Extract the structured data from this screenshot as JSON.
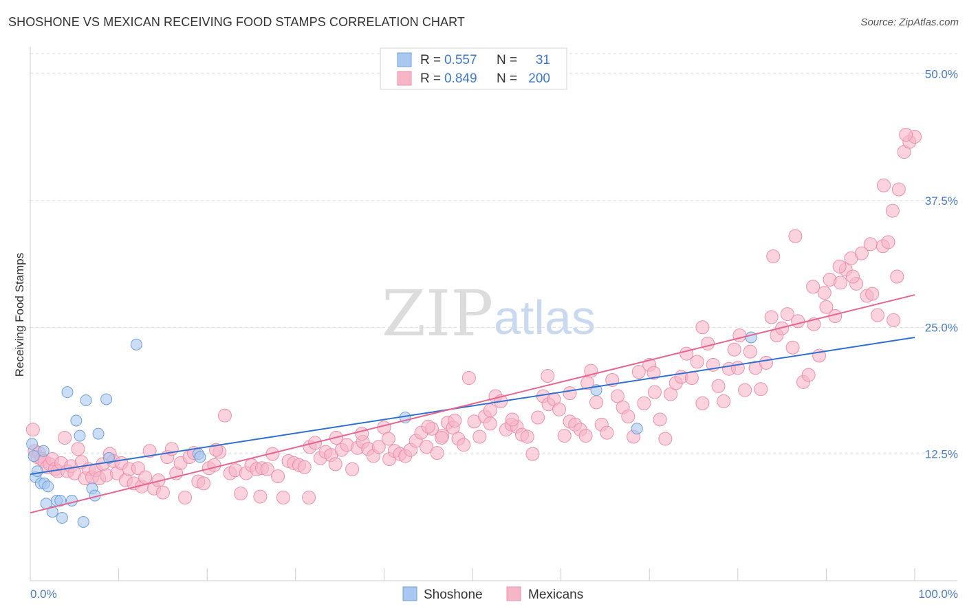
{
  "title": "SHOSHONE VS MEXICAN RECEIVING FOOD STAMPS CORRELATION CHART",
  "source": "Source: ZipAtlas.com",
  "watermark": {
    "zip": "ZIP",
    "atlas": "atlas"
  },
  "colors": {
    "shoshone_fill": "#a9c8f0",
    "shoshone_stroke": "#6f9fd8",
    "shoshone_line": "#2f6fd0",
    "mexican_fill": "#f6b6c8",
    "mexican_stroke": "#ee8faa",
    "mexican_line": "#e8648e",
    "tick_text": "#4a7cc9",
    "grid": "#d9d9d9"
  },
  "legend_top": {
    "rows": [
      {
        "series": "Shoshone",
        "r_label": "R =",
        "r_value": "0.557",
        "n_label": "N =",
        "n_value": "31"
      },
      {
        "series": "Mexicans",
        "r_label": "R =",
        "r_value": "0.849",
        "n_label": "N =",
        "n_value": "200"
      }
    ]
  },
  "chart_data": {
    "type": "scatter",
    "title": "SHOSHONE VS MEXICAN RECEIVING FOOD STAMPS CORRELATION CHART",
    "xlabel": "",
    "ylabel": "Receiving Food Stamps",
    "xlim": [
      0,
      100
    ],
    "ylim": [
      0,
      52
    ],
    "x_tick_labels": [
      "0.0%",
      "100.0%"
    ],
    "y_ticks": [
      12.5,
      25.0,
      37.5,
      50.0
    ],
    "y_tick_labels": [
      "12.5%",
      "25.0%",
      "37.5%",
      "50.0%"
    ],
    "grid": true,
    "legend_position": "top-center and bottom",
    "series": [
      {
        "name": "Shoshone",
        "r": 0.557,
        "n": 31,
        "trend": {
          "x": [
            0,
            100
          ],
          "y": [
            10.5,
            24.0
          ]
        },
        "points": [
          [
            0.2,
            13.5
          ],
          [
            0.4,
            12.3
          ],
          [
            0.6,
            10.2
          ],
          [
            0.8,
            10.8
          ],
          [
            1.2,
            9.6
          ],
          [
            1.5,
            12.8
          ],
          [
            1.6,
            9.6
          ],
          [
            1.8,
            7.6
          ],
          [
            2.0,
            9.3
          ],
          [
            2.5,
            6.8
          ],
          [
            3.0,
            7.9
          ],
          [
            3.4,
            7.9
          ],
          [
            3.6,
            6.2
          ],
          [
            4.2,
            18.6
          ],
          [
            4.7,
            7.9
          ],
          [
            5.2,
            15.8
          ],
          [
            5.6,
            14.3
          ],
          [
            6.0,
            5.8
          ],
          [
            6.3,
            17.8
          ],
          [
            7.0,
            9.1
          ],
          [
            7.3,
            8.4
          ],
          [
            7.7,
            14.5
          ],
          [
            8.6,
            17.9
          ],
          [
            8.9,
            12.1
          ],
          [
            12.0,
            23.3
          ],
          [
            19.0,
            12.5
          ],
          [
            19.2,
            12.2
          ],
          [
            42.4,
            16.1
          ],
          [
            64.0,
            18.8
          ],
          [
            68.6,
            15.0
          ],
          [
            81.5,
            24.0
          ]
        ]
      },
      {
        "name": "Mexicans",
        "r": 0.849,
        "n": 200,
        "trend": {
          "x": [
            0,
            100
          ],
          "y": [
            6.7,
            28.2
          ]
        },
        "points": [
          [
            0.3,
            14.9
          ],
          [
            0.5,
            12.8
          ],
          [
            0.8,
            12.2
          ],
          [
            1.0,
            12.6
          ],
          [
            1.3,
            12.0
          ],
          [
            1.6,
            11.8
          ],
          [
            1.9,
            11.2
          ],
          [
            2.2,
            11.5
          ],
          [
            2.5,
            12.0
          ],
          [
            2.8,
            11.0
          ],
          [
            3.1,
            10.8
          ],
          [
            3.5,
            11.6
          ],
          [
            3.9,
            14.1
          ],
          [
            4.2,
            10.8
          ],
          [
            4.6,
            11.3
          ],
          [
            5.0,
            10.6
          ],
          [
            5.4,
            13.0
          ],
          [
            5.8,
            11.7
          ],
          [
            6.2,
            10.1
          ],
          [
            6.6,
            11.0
          ],
          [
            7.0,
            10.2
          ],
          [
            7.4,
            10.9
          ],
          [
            7.8,
            10.1
          ],
          [
            8.2,
            11.5
          ],
          [
            8.6,
            10.4
          ],
          [
            9.0,
            12.5
          ],
          [
            9.4,
            11.8
          ],
          [
            9.8,
            10.6
          ],
          [
            10.3,
            11.6
          ],
          [
            10.8,
            9.9
          ],
          [
            11.2,
            11.0
          ],
          [
            11.7,
            9.6
          ],
          [
            12.2,
            11.1
          ],
          [
            12.6,
            9.3
          ],
          [
            13.0,
            10.2
          ],
          [
            13.5,
            12.8
          ],
          [
            14.0,
            9.1
          ],
          [
            14.5,
            9.9
          ],
          [
            15.0,
            8.7
          ],
          [
            15.5,
            12.2
          ],
          [
            16.0,
            13.0
          ],
          [
            16.5,
            10.6
          ],
          [
            17.0,
            11.6
          ],
          [
            17.5,
            8.2
          ],
          [
            18.0,
            12.2
          ],
          [
            18.5,
            12.6
          ],
          [
            19.0,
            9.8
          ],
          [
            19.6,
            9.6
          ],
          [
            20.2,
            11.1
          ],
          [
            20.8,
            11.4
          ],
          [
            21.4,
            12.7
          ],
          [
            22.0,
            16.3
          ],
          [
            22.6,
            10.6
          ],
          [
            23.2,
            10.9
          ],
          [
            23.8,
            8.6
          ],
          [
            24.4,
            10.6
          ],
          [
            25.0,
            11.4
          ],
          [
            25.6,
            11.0
          ],
          [
            26.2,
            11.1
          ],
          [
            26.8,
            11.0
          ],
          [
            27.4,
            12.5
          ],
          [
            28.0,
            10.3
          ],
          [
            28.6,
            8.2
          ],
          [
            29.2,
            11.8
          ],
          [
            29.8,
            11.6
          ],
          [
            30.4,
            11.4
          ],
          [
            31.0,
            11.2
          ],
          [
            31.6,
            13.2
          ],
          [
            32.2,
            13.6
          ],
          [
            32.8,
            12.1
          ],
          [
            33.4,
            12.7
          ],
          [
            34.0,
            12.4
          ],
          [
            34.6,
            14.1
          ],
          [
            35.2,
            12.9
          ],
          [
            35.8,
            13.4
          ],
          [
            36.4,
            11.0
          ],
          [
            37.0,
            13.1
          ],
          [
            37.6,
            13.7
          ],
          [
            38.2,
            13.0
          ],
          [
            38.8,
            12.3
          ],
          [
            39.4,
            13.2
          ],
          [
            40.0,
            15.1
          ],
          [
            40.6,
            12.0
          ],
          [
            41.2,
            12.8
          ],
          [
            41.8,
            12.5
          ],
          [
            42.4,
            12.3
          ],
          [
            43.0,
            12.9
          ],
          [
            43.6,
            13.8
          ],
          [
            44.2,
            14.6
          ],
          [
            44.8,
            13.2
          ],
          [
            45.4,
            15.0
          ],
          [
            46.0,
            12.6
          ],
          [
            46.6,
            14.3
          ],
          [
            47.2,
            15.6
          ],
          [
            47.8,
            15.1
          ],
          [
            48.4,
            14.0
          ],
          [
            49.0,
            13.4
          ],
          [
            49.6,
            20.0
          ],
          [
            50.2,
            15.7
          ],
          [
            50.8,
            14.2
          ],
          [
            51.4,
            16.2
          ],
          [
            52.0,
            15.5
          ],
          [
            52.6,
            18.2
          ],
          [
            53.2,
            17.7
          ],
          [
            53.8,
            14.9
          ],
          [
            54.4,
            15.4
          ],
          [
            55.0,
            15.2
          ],
          [
            55.6,
            14.4
          ],
          [
            56.2,
            14.2
          ],
          [
            56.8,
            12.5
          ],
          [
            57.4,
            16.1
          ],
          [
            58.0,
            18.2
          ],
          [
            58.6,
            17.4
          ],
          [
            59.2,
            17.9
          ],
          [
            59.8,
            16.9
          ],
          [
            60.4,
            14.3
          ],
          [
            61.0,
            15.7
          ],
          [
            61.6,
            15.4
          ],
          [
            62.2,
            14.9
          ],
          [
            62.8,
            14.3
          ],
          [
            63.4,
            20.7
          ],
          [
            64.0,
            17.6
          ],
          [
            64.6,
            15.4
          ],
          [
            65.2,
            14.6
          ],
          [
            65.8,
            19.8
          ],
          [
            66.4,
            18.2
          ],
          [
            67.0,
            17.1
          ],
          [
            67.6,
            16.2
          ],
          [
            68.2,
            14.2
          ],
          [
            68.8,
            20.6
          ],
          [
            69.4,
            17.5
          ],
          [
            70.0,
            21.3
          ],
          [
            70.6,
            18.6
          ],
          [
            71.2,
            15.9
          ],
          [
            71.8,
            14.0
          ],
          [
            72.4,
            18.4
          ],
          [
            73.0,
            19.5
          ],
          [
            73.6,
            20.1
          ],
          [
            74.2,
            22.4
          ],
          [
            74.8,
            20.0
          ],
          [
            75.4,
            21.6
          ],
          [
            76.0,
            17.5
          ],
          [
            76.6,
            23.4
          ],
          [
            77.2,
            21.3
          ],
          [
            77.8,
            19.2
          ],
          [
            78.4,
            17.7
          ],
          [
            79.0,
            20.9
          ],
          [
            79.6,
            22.8
          ],
          [
            80.2,
            24.2
          ],
          [
            80.8,
            18.8
          ],
          [
            81.4,
            22.6
          ],
          [
            82.0,
            21.0
          ],
          [
            82.6,
            18.9
          ],
          [
            83.2,
            21.5
          ],
          [
            83.8,
            26.0
          ],
          [
            84.4,
            24.2
          ],
          [
            85.0,
            24.9
          ],
          [
            85.6,
            26.3
          ],
          [
            86.2,
            23.0
          ],
          [
            86.8,
            25.6
          ],
          [
            87.4,
            19.6
          ],
          [
            88.0,
            20.3
          ],
          [
            88.6,
            25.3
          ],
          [
            89.2,
            22.2
          ],
          [
            89.8,
            28.4
          ],
          [
            90.4,
            29.7
          ],
          [
            91.0,
            26.1
          ],
          [
            91.6,
            29.4
          ],
          [
            92.2,
            30.7
          ],
          [
            92.8,
            31.8
          ],
          [
            93.4,
            29.3
          ],
          [
            94.0,
            32.3
          ],
          [
            94.6,
            28.1
          ],
          [
            95.2,
            28.3
          ],
          [
            95.8,
            26.2
          ],
          [
            96.4,
            33.0
          ],
          [
            97.0,
            33.4
          ],
          [
            97.6,
            25.7
          ],
          [
            98.2,
            38.6
          ],
          [
            98.8,
            42.3
          ],
          [
            99.4,
            43.3
          ],
          [
            100.0,
            43.8
          ],
          [
            84.0,
            32.0
          ],
          [
            86.5,
            34.0
          ],
          [
            88.5,
            29.0
          ],
          [
            90.0,
            27.0
          ],
          [
            91.5,
            31.0
          ],
          [
            93.0,
            30.0
          ],
          [
            95.0,
            33.2
          ],
          [
            96.5,
            39.0
          ],
          [
            97.5,
            36.5
          ],
          [
            99.0,
            44.0
          ],
          [
            98.0,
            30.0
          ],
          [
            76.0,
            25.0
          ],
          [
            80.0,
            21.0
          ],
          [
            70.5,
            20.5
          ],
          [
            63.0,
            19.5
          ],
          [
            61.0,
            18.5
          ],
          [
            58.5,
            20.2
          ],
          [
            54.5,
            15.9
          ],
          [
            52.0,
            16.8
          ],
          [
            48.0,
            15.8
          ],
          [
            46.5,
            14.1
          ],
          [
            45.0,
            15.2
          ],
          [
            40.5,
            14.0
          ],
          [
            37.5,
            14.5
          ],
          [
            34.5,
            11.5
          ],
          [
            31.5,
            8.2
          ],
          [
            26.0,
            8.3
          ],
          [
            21.0,
            12.9
          ]
        ]
      }
    ]
  },
  "bottom_legend": [
    {
      "label": "Shoshone"
    },
    {
      "label": "Mexicans"
    }
  ]
}
